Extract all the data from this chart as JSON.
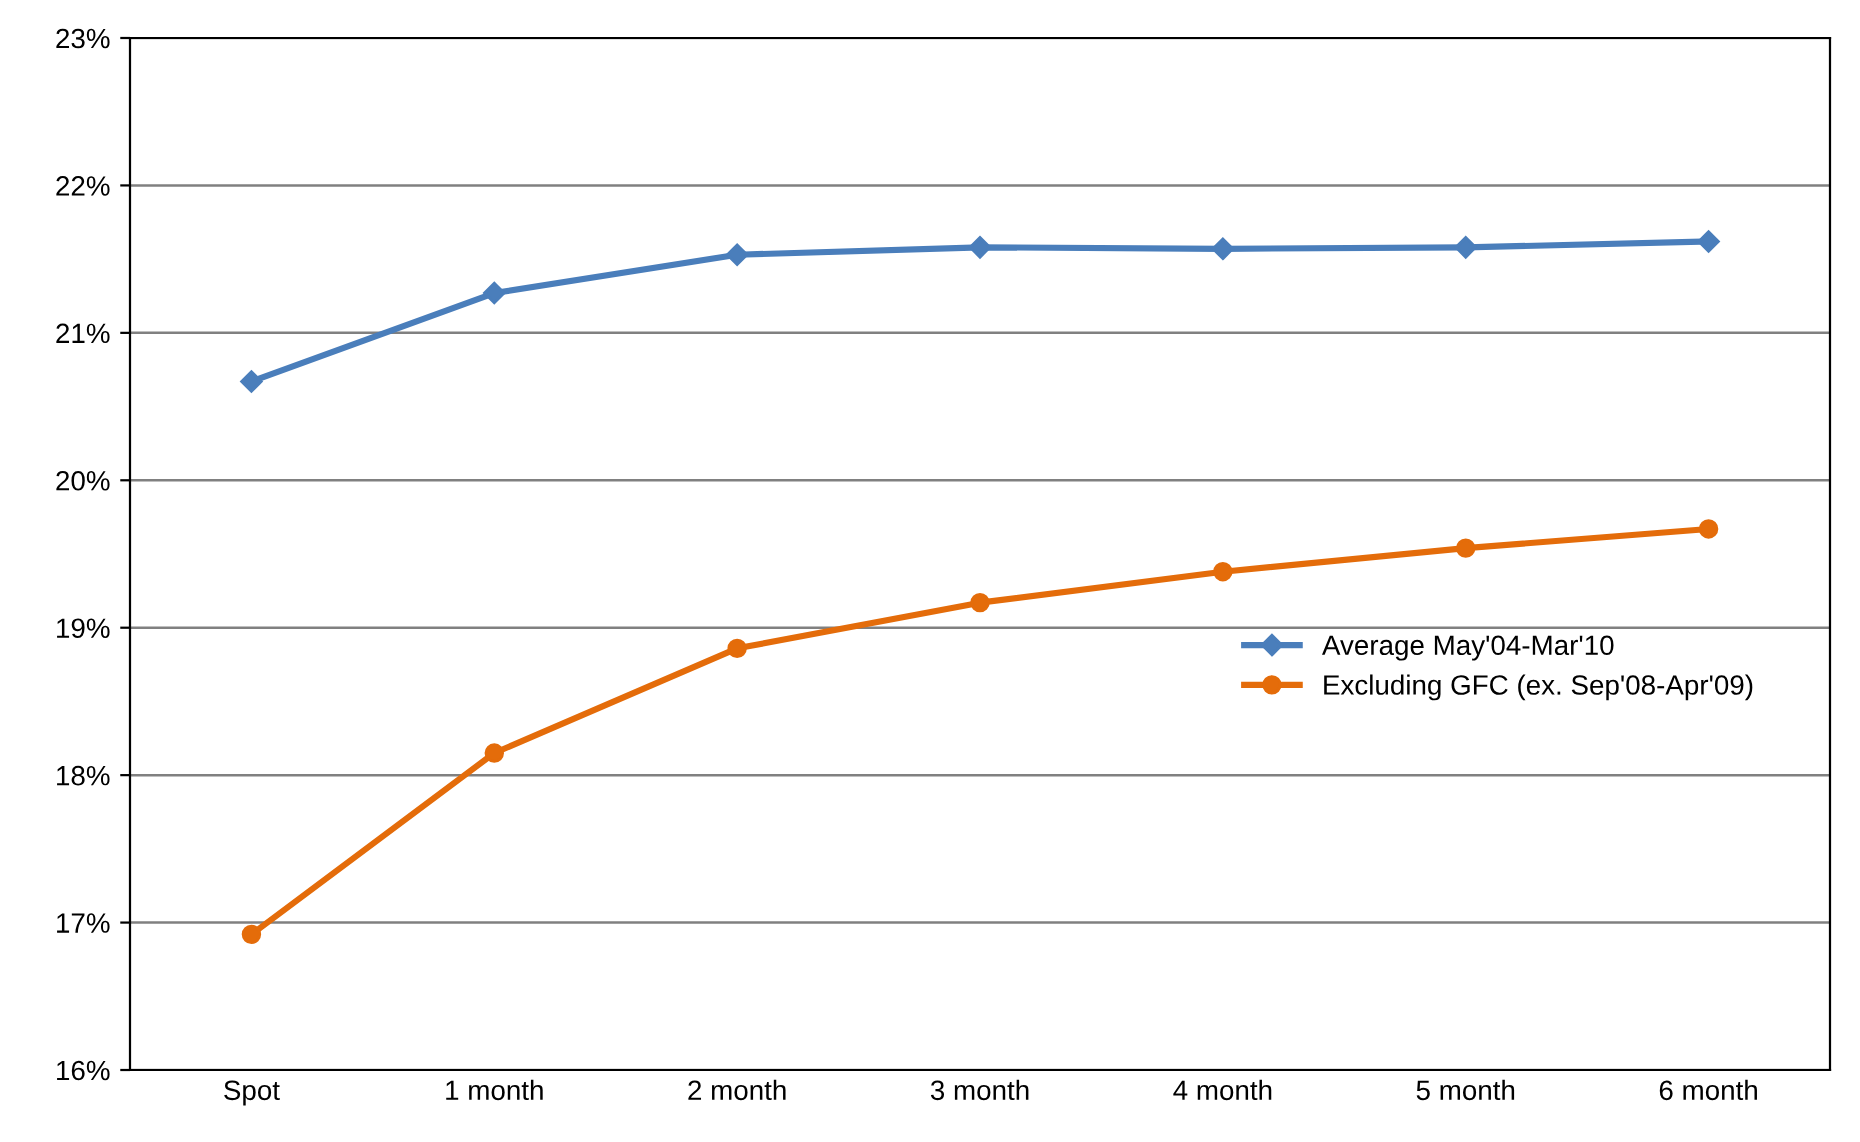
{
  "chart_data": {
    "type": "line",
    "categories": [
      "Spot",
      "1 month",
      "2 month",
      "3 month",
      "4 month",
      "5 month",
      "6 month"
    ],
    "series": [
      {
        "name": "Average May'04-Mar'10",
        "color": "#4a7ebb",
        "marker": "diamond",
        "values": [
          20.67,
          21.27,
          21.53,
          21.58,
          21.57,
          21.58,
          21.62
        ]
      },
      {
        "name": "Excluding GFC (ex. Sep'08-Apr'09)",
        "color": "#e46c0a",
        "marker": "circle",
        "values": [
          16.92,
          18.15,
          18.86,
          19.17,
          19.38,
          19.54,
          19.67
        ]
      }
    ],
    "ylim": [
      16,
      23
    ],
    "yticks": [
      {
        "value": 16,
        "label": "16%"
      },
      {
        "value": 17,
        "label": "17%"
      },
      {
        "value": 18,
        "label": "18%"
      },
      {
        "value": 19,
        "label": "19%"
      },
      {
        "value": 20,
        "label": "20%"
      },
      {
        "value": 21,
        "label": "21%"
      },
      {
        "value": 22,
        "label": "22%"
      },
      {
        "value": 23,
        "label": "23%"
      }
    ],
    "grid": "y",
    "legend": "right",
    "line_style": "solid"
  }
}
